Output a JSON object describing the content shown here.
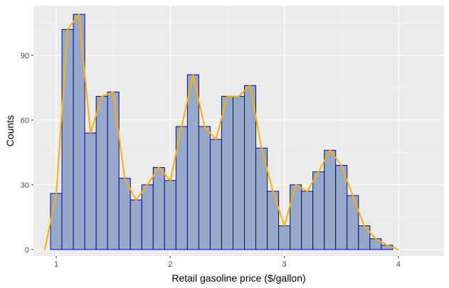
{
  "chart_data": {
    "type": "bar",
    "subtype": "histogram-with-frequency-polygon",
    "title": "",
    "xlabel": "Retail gasoline price ($/gallon)",
    "ylabel": "Counts",
    "xlim": [
      0.8,
      4.4
    ],
    "ylim": [
      -3,
      113
    ],
    "grid": true,
    "legend": "none",
    "x_ticks": [
      1,
      2,
      3,
      4
    ],
    "y_ticks": [
      0,
      30,
      60,
      90
    ],
    "bin_width": 0.1,
    "bin_centers": [
      0.9,
      1.0,
      1.1,
      1.2,
      1.3,
      1.4,
      1.5,
      1.6,
      1.7,
      1.8,
      1.9,
      2.0,
      2.1,
      2.2,
      2.3,
      2.4,
      2.5,
      2.6,
      2.7,
      2.8,
      2.9,
      3.0,
      3.1,
      3.2,
      3.3,
      3.4,
      3.5,
      3.6,
      3.7,
      3.8,
      3.9,
      4.0,
      4.1,
      4.2,
      4.3
    ],
    "counts": [
      0,
      26,
      102,
      109,
      54,
      71,
      73,
      33,
      23,
      30,
      38,
      32,
      57,
      81,
      57,
      51,
      71,
      71,
      76,
      47,
      27,
      11,
      30,
      27,
      36,
      46,
      39,
      25,
      11,
      5,
      2,
      0,
      0,
      0,
      0
    ],
    "series": [
      {
        "name": "",
        "kind": "histogram",
        "values": [
          0,
          26,
          102,
          109,
          54,
          71,
          73,
          33,
          23,
          30,
          38,
          32,
          57,
          81,
          57,
          51,
          71,
          71,
          76,
          47,
          27,
          11,
          30,
          27,
          36,
          46,
          39,
          25,
          11,
          5,
          2
        ]
      },
      {
        "name": "",
        "kind": "frequency-polygon",
        "values": [
          0,
          26,
          102,
          109,
          54,
          71,
          73,
          33,
          23,
          30,
          38,
          32,
          57,
          81,
          57,
          51,
          71,
          71,
          76,
          47,
          27,
          11,
          30,
          27,
          36,
          46,
          39,
          25,
          11,
          5,
          2,
          0
        ]
      }
    ],
    "colors": {
      "panel_background": "#ebebeb",
      "grid_major": "#ffffff",
      "grid_minor": "#f5f5f5",
      "bar_fill": "#97a9c8",
      "bar_outline": "#0000cd",
      "line": "#ffb000",
      "tick_text": "#4d4d4d",
      "tick_mark": "#333333",
      "axis_title": "#000000"
    }
  }
}
